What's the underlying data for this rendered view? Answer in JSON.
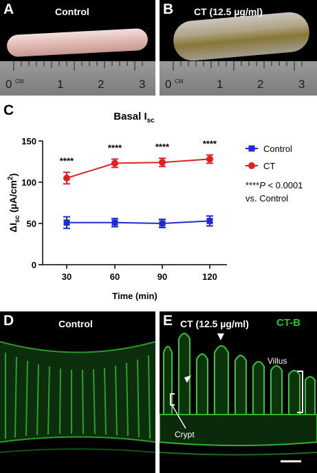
{
  "panel_a": {
    "letter": "A",
    "title": "Control"
  },
  "panel_b": {
    "letter": "B",
    "title": "CT (12.5 µg/ml)"
  },
  "ruler": {
    "unit": "CM",
    "numbers": [
      "0",
      "1",
      "2",
      "3"
    ]
  },
  "panel_c": {
    "letter": "C"
  },
  "panel_d": {
    "letter": "D",
    "title": "Control"
  },
  "panel_e": {
    "letter": "E",
    "title": "CT (12.5 µg/ml)",
    "stain": "CT-B",
    "stain_color": "#19d119",
    "labels": {
      "villus": "Villus",
      "crypt": "Crypt"
    }
  },
  "chart_data": {
    "type": "line",
    "title": "Basal I",
    "title_sub": "sc",
    "xlabel": "Time (min)",
    "ylabel_prefix": "ΔI",
    "ylabel_sub": "sc",
    "ylabel_suffix": " (µA/cm",
    "ylabel_sup": "2",
    "ylabel_end": ")",
    "x": [
      30,
      60,
      90,
      120
    ],
    "ylim": [
      0,
      150
    ],
    "yticks": [
      0,
      50,
      100,
      150
    ],
    "series": [
      {
        "name": "Control",
        "color": "#1f2ad4",
        "marker": "square",
        "values": [
          51,
          51,
          50,
          53
        ],
        "err": [
          7,
          5,
          5,
          6
        ]
      },
      {
        "name": "CT",
        "color": "#e02020",
        "marker": "circle",
        "values": [
          105,
          123,
          124,
          128
        ],
        "err": [
          7,
          5,
          5,
          5
        ]
      }
    ],
    "significance": [
      "****",
      "****",
      "****",
      "****"
    ],
    "stat_note_stars": "****",
    "stat_note_p": "P",
    "stat_note_rest": " < 0.0001",
    "stat_note_line2": "vs. Control"
  }
}
